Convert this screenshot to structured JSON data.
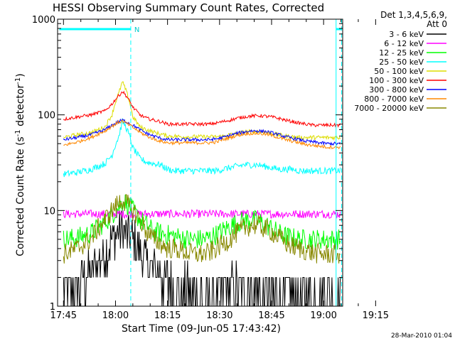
{
  "chart_data": {
    "type": "line",
    "title": "HESSI Observing Summary Count Rates, Corrected",
    "xlabel": "Start Time (09-Jun-05 17:43:42)",
    "ylabel": "Corrected Count Rate (s",
    "ylabel_sup1": "-1",
    "ylabel_mid": " detector",
    "ylabel_sup2": "-1",
    "ylabel_end": ")",
    "yscale": "log",
    "ylim": [
      1,
      1000
    ],
    "y_ticks": [
      {
        "v": 1,
        "label": "1"
      },
      {
        "v": 10,
        "label": "10"
      },
      {
        "v": 100,
        "label": "100"
      },
      {
        "v": 1000,
        "label": "1000"
      }
    ],
    "xlim_min": [
      -1.7,
      80.5
    ],
    "x_ticks": [
      {
        "m": 0,
        "label": "17:45"
      },
      {
        "m": 15,
        "label": "18:00"
      },
      {
        "m": 30,
        "label": "18:15"
      },
      {
        "m": 45,
        "label": "18:30"
      },
      {
        "m": 60,
        "label": "18:45"
      },
      {
        "m": 75,
        "label": "19:00"
      },
      {
        "m": 90,
        "label": "19:15"
      }
    ],
    "legend_header": [
      "Det 1,3,4,5,6,9,",
      "Att 0"
    ],
    "legend_placement": "right",
    "flag_label": "N",
    "night_start_min": 19.4,
    "night_end_min": 78.6,
    "series": [
      {
        "name": "3 - 6 keV",
        "color": "#000000",
        "values_x": [
          0,
          2,
          4,
          6,
          8,
          10,
          12,
          14,
          16,
          17,
          18,
          20,
          22,
          24,
          26,
          28,
          30,
          32,
          34,
          36,
          38,
          40,
          42,
          44,
          46,
          48,
          50,
          52,
          54,
          56,
          58,
          60,
          62,
          64,
          66,
          68,
          70,
          72,
          74,
          76,
          78,
          80
        ],
        "values_y": [
          1.3,
          1.5,
          1.6,
          2,
          2.2,
          2.8,
          3.5,
          5,
          6,
          6.4,
          5.8,
          5,
          4,
          3,
          2.4,
          2,
          1.8,
          1.6,
          1.5,
          1.5,
          1.4,
          1.3,
          1.3,
          1.3,
          1.4,
          1.6,
          1.6,
          1.6,
          1.5,
          1.4,
          1.3,
          1.3,
          1.3,
          1.3,
          1.3,
          1.3,
          1.3,
          1.3,
          1.3,
          1.3,
          1.3,
          1.3
        ]
      },
      {
        "name": "6 - 12 keV",
        "color": "#ff00ff",
        "values_x": [
          0,
          80
        ],
        "values_y": [
          9.2,
          9.2
        ]
      },
      {
        "name": "12 - 25 keV",
        "color": "#00ff00",
        "values_x": [
          0,
          4,
          8,
          12,
          14,
          16,
          17,
          18,
          20,
          22,
          24,
          26,
          28,
          30,
          32,
          34,
          36,
          38,
          40,
          42,
          44,
          46,
          48,
          50,
          52,
          54,
          56,
          58,
          60,
          62,
          64,
          66,
          68,
          70,
          72,
          74,
          76,
          78,
          80
        ],
        "values_y": [
          5,
          5.2,
          5.8,
          7.5,
          9,
          11,
          12.5,
          12,
          10,
          8,
          7,
          6,
          5.8,
          5.6,
          5.4,
          5.2,
          5,
          5,
          5,
          5.2,
          5.6,
          6.2,
          6.8,
          7.4,
          7.8,
          8,
          7.8,
          7.2,
          6.5,
          5.8,
          5.4,
          5.2,
          5,
          5,
          5,
          5,
          5,
          5,
          5
        ]
      },
      {
        "name": "25 - 50 keV",
        "color": "#00ffff",
        "values_x": [
          0,
          4,
          8,
          12,
          14,
          16,
          17,
          18,
          20,
          22,
          24,
          26,
          28,
          30,
          32,
          34,
          36,
          38,
          40,
          42,
          44,
          46,
          48,
          50,
          52,
          54,
          56,
          58,
          60,
          62,
          64,
          66,
          68,
          70,
          72,
          74,
          76,
          78,
          80
        ],
        "values_y": [
          24,
          25,
          27,
          31,
          38,
          60,
          85,
          75,
          45,
          35,
          32,
          31,
          30,
          27,
          26,
          26,
          26,
          26,
          26,
          26,
          26,
          27,
          28,
          29,
          30,
          30,
          30,
          29,
          28,
          27,
          27,
          27,
          26,
          26,
          26,
          26,
          26,
          26,
          26
        ]
      },
      {
        "name": "50 - 100 keV",
        "color": "#dddd00",
        "values_x": [
          0,
          4,
          8,
          12,
          14,
          16,
          17,
          18,
          20,
          22,
          24,
          26,
          28,
          30,
          32,
          34,
          36,
          38,
          40,
          42,
          44,
          46,
          48,
          50,
          52,
          54,
          56,
          58,
          60,
          62,
          64,
          66,
          68,
          70,
          72,
          74,
          76,
          78,
          80
        ],
        "values_y": [
          58,
          62,
          65,
          75,
          100,
          170,
          220,
          180,
          95,
          75,
          70,
          66,
          63,
          60,
          60,
          59,
          59,
          59,
          59,
          59,
          59,
          60,
          62,
          64,
          66,
          67,
          67,
          66,
          64,
          62,
          60,
          59,
          58,
          58,
          58,
          58,
          58,
          58,
          58
        ]
      },
      {
        "name": "100 - 300 keV",
        "color": "#ff0000",
        "values_x": [
          0,
          4,
          8,
          12,
          14,
          16,
          17,
          18,
          20,
          22,
          24,
          26,
          28,
          30,
          32,
          34,
          36,
          38,
          40,
          42,
          44,
          46,
          48,
          50,
          52,
          54,
          56,
          58,
          60,
          62,
          64,
          66,
          68,
          70,
          72,
          74,
          76,
          78,
          80
        ],
        "values_y": [
          90,
          95,
          100,
          110,
          130,
          160,
          175,
          160,
          120,
          100,
          92,
          88,
          85,
          80,
          80,
          80,
          80,
          80,
          80,
          80,
          82,
          85,
          88,
          92,
          95,
          97,
          98,
          97,
          95,
          92,
          88,
          85,
          82,
          80,
          78,
          78,
          78,
          78,
          78
        ]
      },
      {
        "name": "300 - 800 keV",
        "color": "#0000ff",
        "values_x": [
          0,
          4,
          8,
          12,
          14,
          16,
          17,
          18,
          20,
          22,
          24,
          26,
          28,
          30,
          32,
          34,
          36,
          38,
          40,
          42,
          44,
          46,
          48,
          50,
          52,
          54,
          56,
          58,
          60,
          62,
          64,
          66,
          68,
          70,
          72,
          74,
          76,
          78,
          80
        ],
        "values_y": [
          55,
          58,
          62,
          70,
          78,
          85,
          88,
          85,
          78,
          70,
          64,
          60,
          57,
          55,
          55,
          55,
          55,
          55,
          55,
          55,
          56,
          58,
          61,
          64,
          66,
          68,
          68,
          67,
          65,
          62,
          59,
          57,
          55,
          53,
          52,
          51,
          50,
          50,
          50
        ]
      },
      {
        "name": "800 - 7000 keV",
        "color": "#ff8800",
        "values_x": [
          0,
          4,
          8,
          12,
          14,
          16,
          17,
          18,
          20,
          22,
          24,
          26,
          28,
          30,
          32,
          34,
          36,
          38,
          40,
          42,
          44,
          46,
          48,
          50,
          52,
          54,
          56,
          58,
          60,
          62,
          64,
          66,
          68,
          70,
          72,
          74,
          76,
          78,
          80
        ],
        "values_y": [
          48,
          52,
          58,
          68,
          76,
          84,
          86,
          82,
          74,
          66,
          60,
          56,
          53,
          51,
          51,
          51,
          51,
          51,
          51,
          51,
          52,
          55,
          58,
          61,
          63,
          64,
          64,
          63,
          61,
          58,
          55,
          53,
          51,
          49,
          48,
          47,
          46,
          46,
          46
        ]
      },
      {
        "name": "7000 - 20000 keV",
        "color": "#888800",
        "values_x": [
          0,
          4,
          8,
          12,
          14,
          16,
          17,
          18,
          20,
          22,
          24,
          26,
          28,
          30,
          32,
          34,
          36,
          38,
          40,
          42,
          44,
          46,
          48,
          50,
          52,
          54,
          56,
          58,
          60,
          62,
          64,
          66,
          68,
          70,
          72,
          74,
          76,
          78,
          80
        ],
        "values_y": [
          3.5,
          4,
          5,
          8,
          10,
          12,
          13,
          12,
          10,
          8,
          6,
          5,
          4.5,
          4,
          4,
          3.8,
          3.6,
          3.5,
          3.5,
          3.6,
          4,
          4.5,
          5,
          5.8,
          6.5,
          7,
          7,
          6.5,
          6,
          5.2,
          4.6,
          4.2,
          4,
          3.8,
          3.6,
          3.5,
          3.5,
          3.5,
          3.5
        ]
      }
    ]
  },
  "footer_date": "28-Mar-2010 01:04"
}
